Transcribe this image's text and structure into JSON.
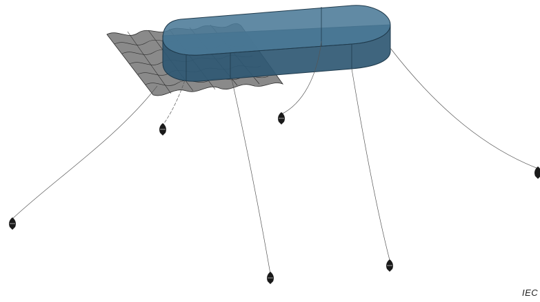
{
  "figure": {
    "caption": "IEC",
    "colors": {
      "hull_fill": "#3b6683",
      "hull_top": "#4b7a97",
      "hull_edge": "#1f3a4c",
      "wave_fill": "#8a8a8a",
      "wave_line": "#2a2a2a",
      "mooring_line": "#555555",
      "anchor": "#1a1a1a"
    },
    "icons": [
      "anchor-icon"
    ]
  }
}
